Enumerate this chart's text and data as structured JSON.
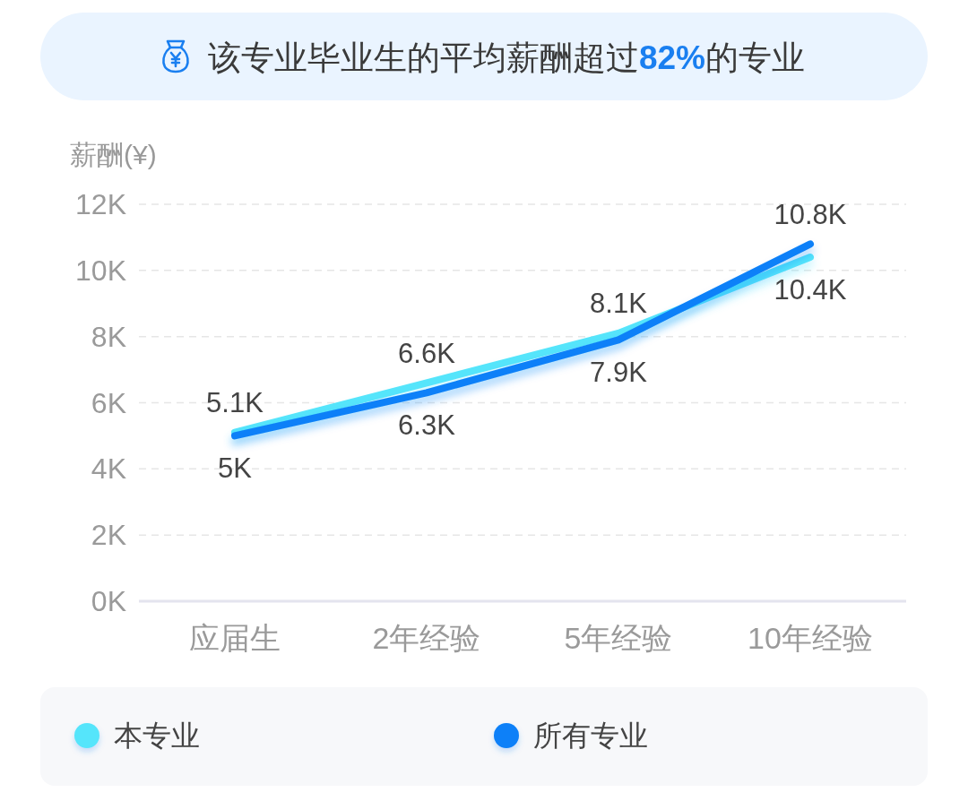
{
  "chart_data": {
    "type": "line",
    "title": "该专业毕业生的平均薪酬超过**82%**的专业",
    "ylabel": "薪酬(¥)",
    "categories": [
      "应届生",
      "2年经验",
      "5年经验",
      "10年经验"
    ],
    "series": [
      {
        "name": "本专业",
        "color": "#55e5fb",
        "values": [
          5100,
          6600,
          8100,
          10400
        ],
        "value_labels": [
          "5.1K",
          "6.6K",
          "8.1K",
          "10.4K"
        ]
      },
      {
        "name": "所有专业",
        "color": "#0b80f8",
        "values": [
          5000,
          6300,
          7900,
          10800
        ],
        "value_labels": [
          "5K",
          "6.3K",
          "7.9K",
          "10.8K"
        ]
      }
    ],
    "ylim": [
      0,
      12000
    ],
    "yticks": [
      {
        "value": 0,
        "label": "0K"
      },
      {
        "value": 2000,
        "label": "2K"
      },
      {
        "value": 4000,
        "label": "4K"
      },
      {
        "value": 6000,
        "label": "6K"
      },
      {
        "value": 8000,
        "label": "8K"
      },
      {
        "value": 10000,
        "label": "10K"
      },
      {
        "value": 12000,
        "label": "12K"
      }
    ],
    "grid": "y",
    "legend": "bottom",
    "marker": "none",
    "line_style": "solid"
  }
}
